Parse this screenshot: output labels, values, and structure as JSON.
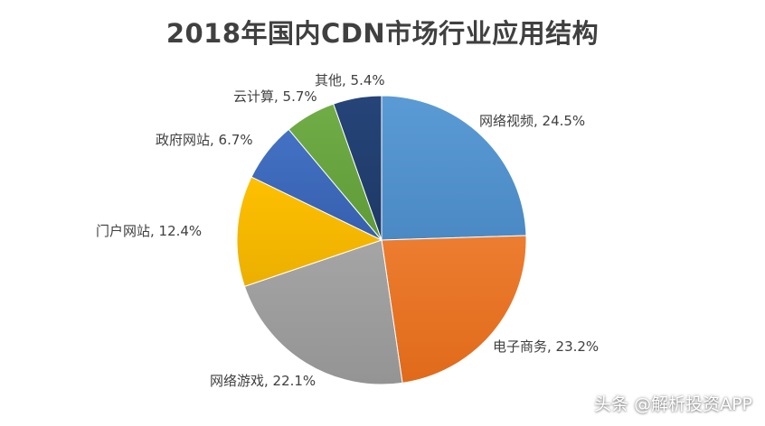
{
  "chart_data": {
    "type": "pie",
    "title": "2018年国内CDN市场行业应用结构",
    "slices": [
      {
        "label": "网络视频, 24.5%",
        "value": 24.5,
        "color": "#5B9BD5",
        "color_dark": "#4A89C4"
      },
      {
        "label": "电子商务, 23.2%",
        "value": 23.2,
        "color": "#ED7D31",
        "color_dark": "#E06A1A"
      },
      {
        "label": "网络游戏, 22.1%",
        "value": 22.1,
        "color": "#A5A5A5",
        "color_dark": "#949494"
      },
      {
        "label": "门户网站, 12.4%",
        "value": 12.4,
        "color": "#FFC000",
        "color_dark": "#EBAF00"
      },
      {
        "label": "政府网站, 6.7%",
        "value": 6.7,
        "color": "#4472C4",
        "color_dark": "#365FAE"
      },
      {
        "label": "云计算, 5.7%",
        "value": 5.7,
        "color": "#70AD47",
        "color_dark": "#5E9A37"
      },
      {
        "label": "其他, 5.4%",
        "value": 5.4,
        "color": "#264478",
        "color_dark": "#1D3966"
      }
    ]
  },
  "watermark": "头条 @解析投资APP"
}
